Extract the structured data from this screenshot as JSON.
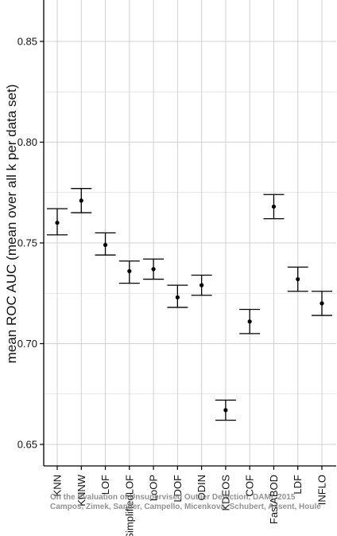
{
  "chart_data": {
    "type": "errorbar",
    "title": "",
    "xlabel": "",
    "ylabel": "mean ROC AUC (mean over all k per data set)",
    "ylim": [
      0.635,
      0.87
    ],
    "yticks": [
      0.65,
      0.7,
      0.75,
      0.8,
      0.85
    ],
    "ytick_labels": [
      "0.65",
      "0.70",
      "0.75",
      "0.80",
      "0.85"
    ],
    "grid": true,
    "categories": [
      "KNN",
      "KNNW",
      "LOF",
      "SimplifiedLOF",
      "LoOP",
      "LDOF",
      "ODIN",
      "KDEOS",
      "COF",
      "FastABOD",
      "LDF",
      "INFLO"
    ],
    "values": [
      0.76,
      0.771,
      0.749,
      0.736,
      0.737,
      0.723,
      0.729,
      0.667,
      0.711,
      0.768,
      0.732,
      0.72
    ],
    "lower": [
      0.754,
      0.765,
      0.744,
      0.73,
      0.732,
      0.718,
      0.724,
      0.662,
      0.705,
      0.762,
      0.726,
      0.714
    ],
    "upper": [
      0.767,
      0.777,
      0.755,
      0.741,
      0.742,
      0.729,
      0.734,
      0.672,
      0.717,
      0.774,
      0.738,
      0.726
    ]
  },
  "watermark": {
    "line1": "On the Evaluation of Unsupervised Outlier Detection, DAMI, 2015",
    "line2": "Campos, Zimek, Sander, Campello, Micenková, Schubert, Assent, Houle"
  },
  "colors": {
    "axis": "#000000",
    "grid": "#d0d0d0",
    "marks": "#000000",
    "watermark": "#7f7f7f"
  }
}
